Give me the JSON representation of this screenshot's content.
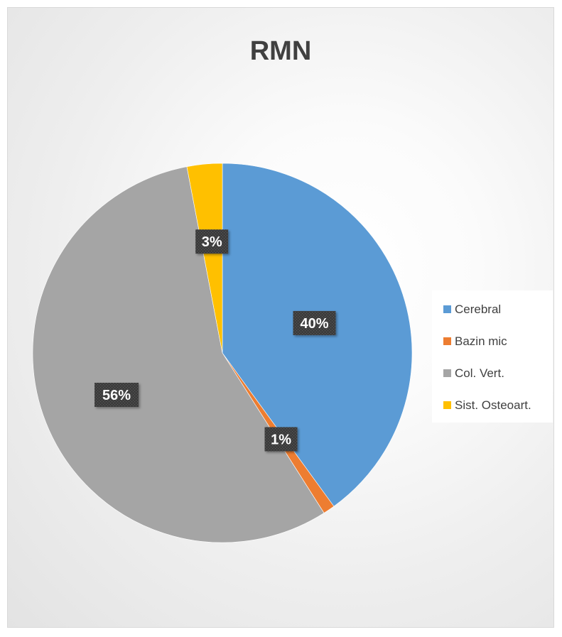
{
  "chart_data": {
    "type": "pie",
    "title": "RMN",
    "categories": [
      "Cerebral",
      "Bazin mic",
      "Col. Vert.",
      "Sist. Osteoart."
    ],
    "values": [
      40,
      1,
      56,
      3
    ],
    "data_labels": [
      "40%",
      "1%",
      "56%",
      "3%"
    ],
    "colors": [
      "#5b9bd5",
      "#ed7d31",
      "#a5a5a5",
      "#ffc000"
    ],
    "start_angle_deg": 0,
    "direction": "clockwise",
    "legend_position": "right",
    "data_label_style": "dark patterned callout box with white bold text"
  }
}
